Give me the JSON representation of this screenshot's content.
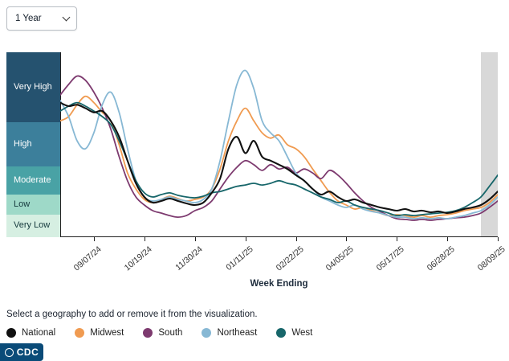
{
  "timeframe": {
    "selected": "1 Year",
    "options": [
      "1 Year"
    ]
  },
  "caption": "Select a geography to add or remove it from the visualization.",
  "logo": {
    "text": "CDC"
  },
  "chart_data": {
    "type": "line",
    "xlabel": "Week Ending",
    "x_tick_labels": [
      "09/07/24",
      "10/19/24",
      "11/30/24",
      "01/11/25",
      "02/22/25",
      "04/05/25",
      "05/17/25",
      "06/28/25",
      "08/09/25"
    ],
    "x_tick_indices": [
      4,
      10,
      16,
      22,
      28,
      34,
      40,
      46,
      52
    ],
    "n_weeks": 53,
    "grid": false,
    "legend_position": "bottom",
    "y_bands": [
      {
        "label": "Very High",
        "color": "#25526f",
        "text_color": "#ffffff"
      },
      {
        "label": "High",
        "color": "#3c7f9b",
        "text_color": "#ffffff"
      },
      {
        "label": "Moderate",
        "color": "#49a2a5",
        "text_color": "#ffffff"
      },
      {
        "label": "Low",
        "color": "#9ed9c8",
        "text_color": "#14383c"
      },
      {
        "label": "Very Low",
        "color": "#d6efe2",
        "text_color": "#14383c"
      }
    ],
    "y_scale_note": "values 0-5: 0=axis bottom, 1=VeryLow/Low, 2=Low/Moderate, 3=Moderate/High, 4=High/VeryHigh, 5=top",
    "provisional_band": {
      "start_index": 50,
      "end_index": 52,
      "color": "#d8d8d8"
    },
    "series": [
      {
        "name": "National",
        "color": "#111111",
        "values": [
          4.28,
          4.23,
          4.25,
          4.2,
          4.14,
          4.16,
          4.02,
          3.67,
          3.13,
          2.4,
          1.88,
          1.6,
          1.68,
          1.8,
          1.68,
          1.56,
          1.48,
          1.6,
          2.06,
          2.57,
          3.4,
          3.67,
          3.3,
          3.58,
          3.22,
          3.13,
          3.04,
          2.91,
          2.69,
          2.49,
          2.2,
          2.0,
          2.11,
          1.88,
          1.68,
          1.76,
          1.6,
          1.48,
          1.36,
          1.28,
          1.2,
          1.28,
          1.16,
          1.2,
          1.12,
          1.16,
          1.08,
          1.16,
          1.28,
          1.36,
          1.48,
          1.76,
          2.11
        ]
      },
      {
        "name": "Midwest",
        "color": "#f09b51",
        "values": [
          4.02,
          4.08,
          4.25,
          4.37,
          4.28,
          4.14,
          4.02,
          3.49,
          2.77,
          2.2,
          1.76,
          1.6,
          1.76,
          1.92,
          1.8,
          1.68,
          1.76,
          1.88,
          2.2,
          2.91,
          3.58,
          4.02,
          4.2,
          4.02,
          3.76,
          3.64,
          3.71,
          3.49,
          3.4,
          3.22,
          2.91,
          2.49,
          2.08,
          1.68,
          1.48,
          1.28,
          1.36,
          1.2,
          1.08,
          0.96,
          1.0,
          0.96,
          0.89,
          0.96,
          0.89,
          0.96,
          1.0,
          1.08,
          1.2,
          1.28,
          1.36,
          1.6,
          2.0
        ]
      },
      {
        "name": "South",
        "color": "#7d3a6f",
        "values": [
          4.39,
          4.54,
          4.66,
          4.6,
          4.43,
          4.2,
          3.85,
          3.22,
          2.49,
          1.88,
          1.48,
          1.2,
          1.08,
          0.96,
          0.89,
          0.96,
          1.2,
          1.36,
          1.68,
          2.2,
          2.63,
          2.97,
          3.13,
          3.04,
          2.86,
          3.04,
          2.91,
          2.97,
          2.77,
          2.91,
          2.77,
          2.57,
          2.86,
          2.69,
          2.4,
          2.06,
          1.68,
          1.36,
          1.16,
          0.96,
          0.82,
          0.79,
          0.75,
          0.79,
          0.75,
          0.79,
          0.82,
          0.86,
          0.89,
          0.96,
          1.08,
          1.36,
          1.68
        ]
      },
      {
        "name": "Northeast",
        "color": "#87b8d4",
        "values": [
          4.31,
          4.08,
          3.58,
          3.4,
          3.76,
          4.25,
          4.43,
          4.14,
          3.4,
          2.49,
          1.88,
          1.68,
          1.76,
          1.88,
          1.76,
          1.68,
          1.6,
          1.76,
          2.2,
          3.13,
          4.02,
          4.54,
          4.74,
          4.48,
          4.02,
          3.76,
          3.58,
          3.22,
          2.77,
          2.49,
          2.2,
          1.88,
          1.68,
          1.48,
          1.36,
          1.48,
          1.28,
          1.16,
          1.08,
          0.96,
          0.89,
          0.89,
          0.82,
          0.86,
          0.82,
          0.86,
          0.82,
          0.89,
          0.96,
          1.08,
          1.2,
          1.48,
          1.88
        ]
      },
      {
        "name": "West",
        "color": "#17666a",
        "values": [
          4.16,
          4.23,
          4.28,
          4.23,
          4.16,
          4.08,
          3.95,
          3.58,
          3.13,
          2.49,
          2.06,
          1.88,
          2.0,
          2.06,
          1.96,
          1.88,
          1.84,
          1.92,
          2.06,
          2.11,
          2.2,
          2.29,
          2.34,
          2.4,
          2.34,
          2.4,
          2.49,
          2.4,
          2.34,
          2.2,
          2.06,
          1.88,
          1.76,
          1.6,
          1.68,
          1.48,
          1.36,
          1.28,
          1.2,
          1.08,
          0.96,
          1.0,
          0.96,
          1.0,
          1.04,
          1.08,
          1.12,
          1.2,
          1.36,
          1.6,
          1.88,
          2.29,
          2.69
        ]
      }
    ]
  }
}
